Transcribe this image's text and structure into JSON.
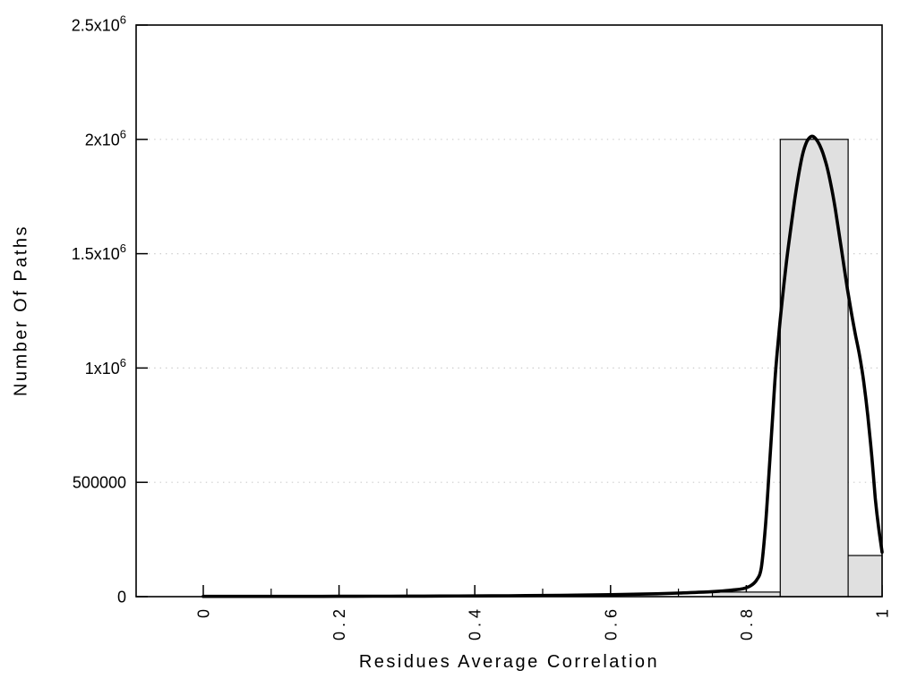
{
  "figure": {
    "background": "#ffffff",
    "colors": {
      "axis": "#000000",
      "grid": "#cccccc",
      "bar_fill": "#e0e0e0",
      "bar_stroke": "#000000",
      "curve": "#000000",
      "text": "#000000"
    }
  },
  "chart_data": {
    "type": "bar",
    "subtype": "histogram-with-fit-curve",
    "title": "",
    "xlabel": "Residues Average Correlation",
    "ylabel": "Number Of Paths",
    "xlim": [
      -0.1,
      1.0
    ],
    "ylim": [
      0,
      2500000
    ],
    "grid": "horizontal-dotted",
    "legend": "none",
    "bars": [
      {
        "x0": 0.75,
        "x1": 0.85,
        "count": 20000
      },
      {
        "x0": 0.85,
        "x1": 0.95,
        "count": 2000000
      },
      {
        "x0": 0.95,
        "x1": 1.0,
        "count": 180000
      }
    ],
    "fit_curve": {
      "points": [
        [
          0.0,
          1000
        ],
        [
          0.05,
          1000
        ],
        [
          0.1,
          1100
        ],
        [
          0.15,
          1300
        ],
        [
          0.2,
          1500
        ],
        [
          0.25,
          1800
        ],
        [
          0.3,
          2200
        ],
        [
          0.35,
          2700
        ],
        [
          0.4,
          3300
        ],
        [
          0.45,
          4100
        ],
        [
          0.5,
          5200
        ],
        [
          0.55,
          6600
        ],
        [
          0.6,
          8600
        ],
        [
          0.65,
          11500
        ],
        [
          0.7,
          15500
        ],
        [
          0.73,
          19000
        ],
        [
          0.76,
          24000
        ],
        [
          0.78,
          29000
        ],
        [
          0.795,
          35000
        ],
        [
          0.806,
          47000
        ],
        [
          0.815,
          72000
        ],
        [
          0.822,
          125000
        ],
        [
          0.828,
          300000
        ],
        [
          0.833,
          520000
        ],
        [
          0.838,
          750000
        ],
        [
          0.843,
          980000
        ],
        [
          0.848,
          1150000
        ],
        [
          0.853,
          1300000
        ],
        [
          0.859,
          1460000
        ],
        [
          0.865,
          1600000
        ],
        [
          0.871,
          1730000
        ],
        [
          0.877,
          1845000
        ],
        [
          0.883,
          1935000
        ],
        [
          0.889,
          1990000
        ],
        [
          0.894,
          2010000
        ],
        [
          0.898,
          2013000
        ],
        [
          0.903,
          2000000
        ],
        [
          0.908,
          1975000
        ],
        [
          0.913,
          1938000
        ],
        [
          0.919,
          1878000
        ],
        [
          0.925,
          1797000
        ],
        [
          0.931,
          1697000
        ],
        [
          0.937,
          1582000
        ],
        [
          0.943,
          1462000
        ],
        [
          0.949,
          1345000
        ],
        [
          0.955,
          1238000
        ],
        [
          0.961,
          1142000
        ],
        [
          0.967,
          1052000
        ],
        [
          0.973,
          940000
        ],
        [
          0.979,
          790000
        ],
        [
          0.985,
          610000
        ],
        [
          0.99,
          430000
        ],
        [
          0.995,
          300000
        ],
        [
          1.0,
          195000
        ]
      ]
    },
    "xticks": {
      "major": [
        {
          "value": 0,
          "label": "0"
        },
        {
          "value": 0.2,
          "label": "0.2"
        },
        {
          "value": 0.4,
          "label": "0.4"
        },
        {
          "value": 0.6,
          "label": "0.6"
        },
        {
          "value": 0.8,
          "label": "0.8"
        },
        {
          "value": 1,
          "label": "1"
        }
      ],
      "minor": [
        0.1,
        0.3,
        0.5,
        0.7,
        0.9
      ]
    },
    "yticks": [
      {
        "value": 0,
        "label": "0",
        "exp": null
      },
      {
        "value": 500000,
        "label": "500000",
        "exp": null
      },
      {
        "value": 1000000,
        "label": "1x10",
        "exp": "6"
      },
      {
        "value": 1500000,
        "label": "1.5x10",
        "exp": "6"
      },
      {
        "value": 2000000,
        "label": "2x10",
        "exp": "6"
      },
      {
        "value": 2500000,
        "label": "2.5x10",
        "exp": "6"
      }
    ]
  }
}
